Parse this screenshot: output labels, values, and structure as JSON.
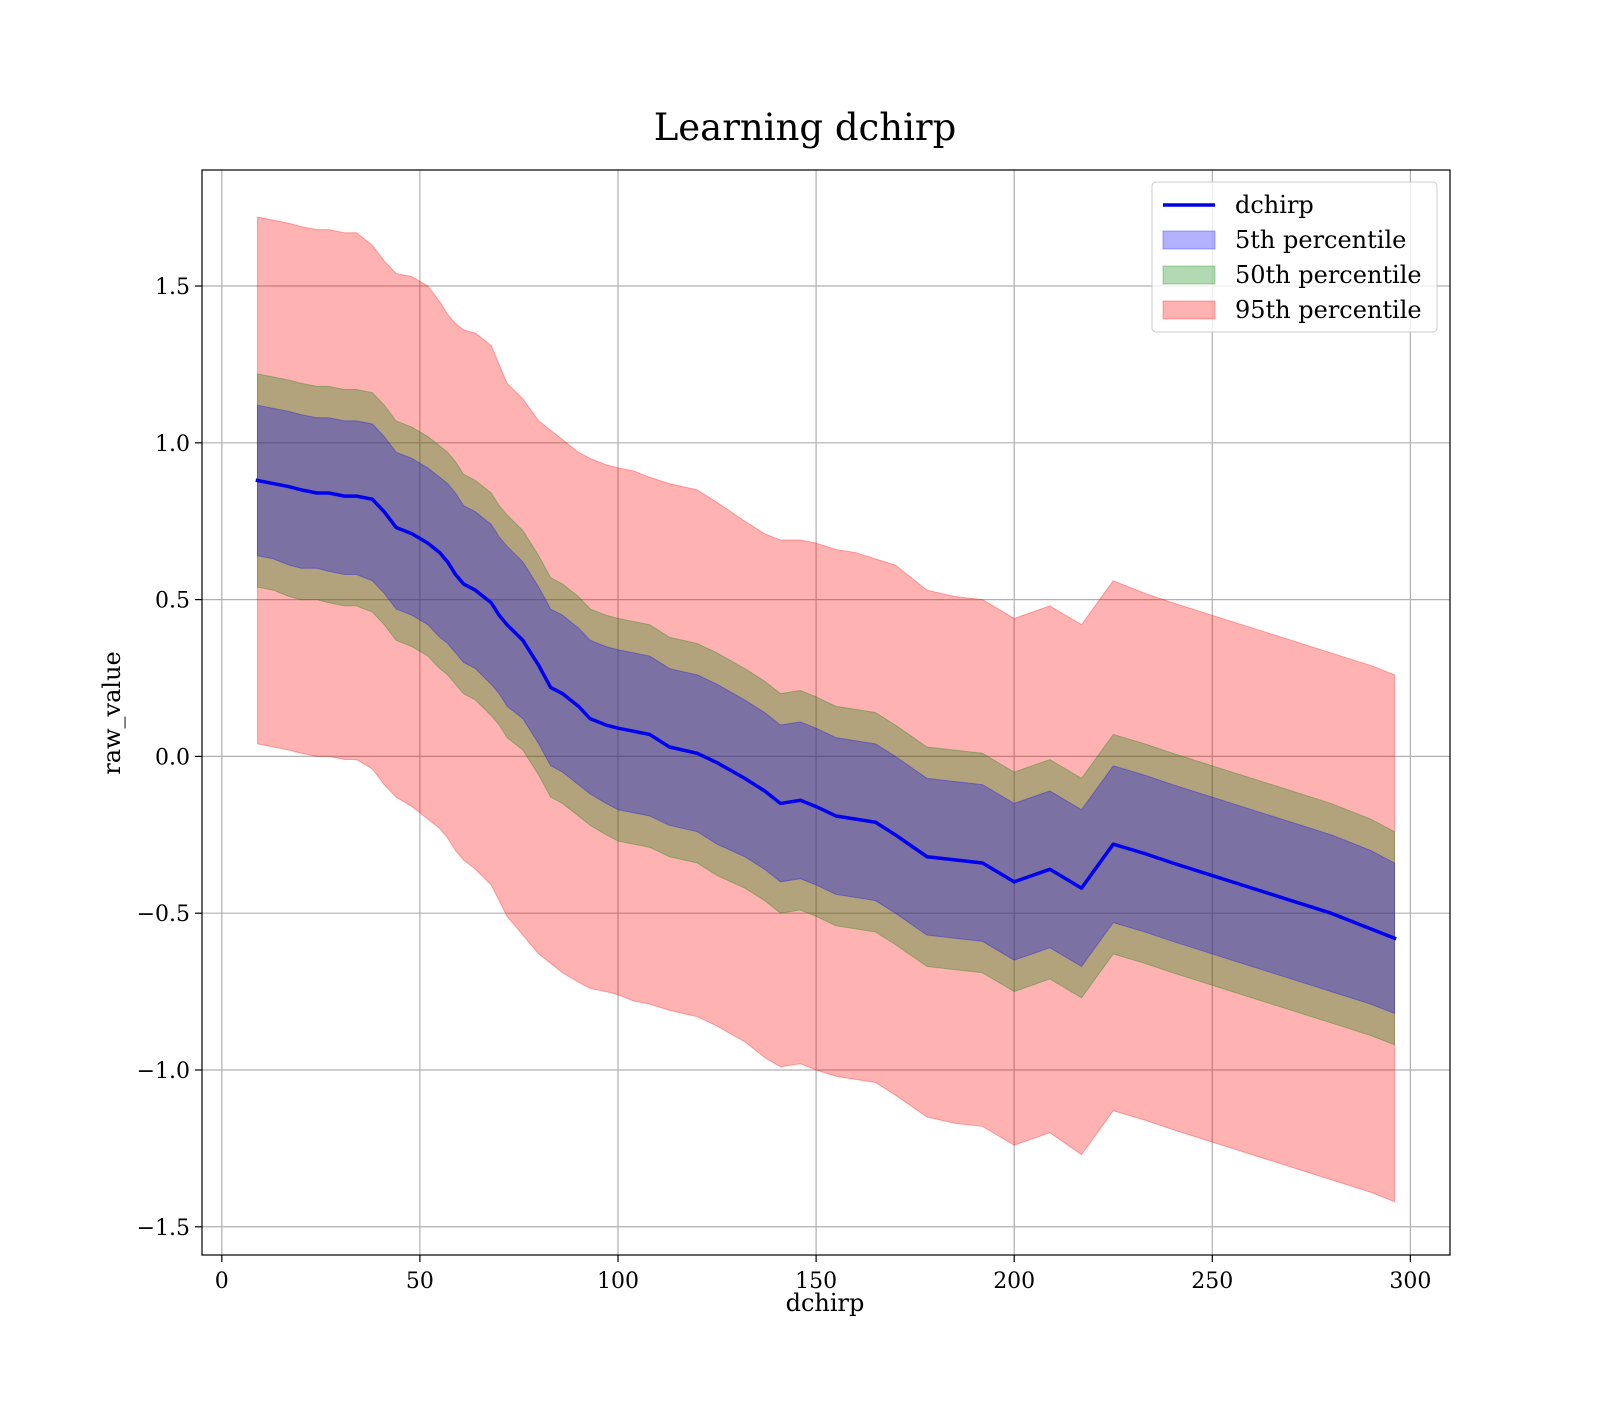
{
  "chart_data": {
    "type": "area",
    "title": "Learning dchirp",
    "xlabel": "dchirp",
    "ylabel": "raw_value",
    "xlim": [
      -5,
      310
    ],
    "ylim": [
      -1.59,
      1.87
    ],
    "xticks": [
      0,
      50,
      100,
      150,
      200,
      250,
      300
    ],
    "yticks": [
      -1.5,
      -1.0,
      -0.5,
      0.0,
      0.5,
      1.0,
      1.5
    ],
    "x_tick_labels": [
      "0",
      "50",
      "100",
      "150",
      "200",
      "250",
      "300"
    ],
    "y_tick_labels": [
      "−1.5",
      "−1.0",
      "−0.5",
      "0.0",
      "0.5",
      "1.0",
      "1.5"
    ],
    "grid": true,
    "legend_position": "top-right",
    "x": [
      9,
      13,
      17,
      20,
      24,
      27,
      31,
      34,
      38,
      41,
      44,
      48,
      52,
      55,
      57,
      59,
      61,
      64,
      68,
      70,
      72,
      76,
      80,
      83,
      86,
      90,
      93,
      97,
      100,
      104,
      108,
      113,
      120,
      125,
      132,
      137,
      141,
      146,
      150,
      155,
      160,
      165,
      170,
      178,
      185,
      192,
      200,
      209,
      217,
      225,
      233,
      240,
      250,
      260,
      270,
      280,
      290,
      296
    ],
    "series": [
      {
        "name": "dchirp",
        "kind": "line",
        "color": "#0000ee",
        "values": [
          0.88,
          0.87,
          0.86,
          0.85,
          0.84,
          0.84,
          0.83,
          0.83,
          0.82,
          0.78,
          0.73,
          0.71,
          0.68,
          0.65,
          0.62,
          0.58,
          0.55,
          0.53,
          0.49,
          0.45,
          0.42,
          0.37,
          0.29,
          0.22,
          0.2,
          0.16,
          0.12,
          0.1,
          0.09,
          0.08,
          0.07,
          0.03,
          0.01,
          -0.02,
          -0.07,
          -0.11,
          -0.15,
          -0.14,
          -0.16,
          -0.19,
          -0.2,
          -0.21,
          -0.25,
          -0.32,
          -0.33,
          -0.34,
          -0.4,
          -0.36,
          -0.42,
          -0.28,
          -0.31,
          -0.34,
          -0.38,
          -0.42,
          -0.46,
          -0.5,
          -0.55,
          -0.58
        ]
      },
      {
        "name": "5th percentile",
        "kind": "band",
        "color": "#0000ff",
        "lower": [
          0.64,
          0.63,
          0.61,
          0.6,
          0.6,
          0.59,
          0.58,
          0.58,
          0.56,
          0.52,
          0.47,
          0.45,
          0.42,
          0.38,
          0.36,
          0.33,
          0.3,
          0.28,
          0.23,
          0.2,
          0.16,
          0.12,
          0.04,
          -0.03,
          -0.05,
          -0.09,
          -0.12,
          -0.15,
          -0.17,
          -0.18,
          -0.19,
          -0.22,
          -0.24,
          -0.28,
          -0.32,
          -0.36,
          -0.4,
          -0.39,
          -0.41,
          -0.44,
          -0.45,
          -0.46,
          -0.5,
          -0.57,
          -0.58,
          -0.59,
          -0.65,
          -0.61,
          -0.67,
          -0.53,
          -0.56,
          -0.59,
          -0.63,
          -0.67,
          -0.71,
          -0.75,
          -0.79,
          -0.82
        ],
        "upper": [
          1.12,
          1.11,
          1.1,
          1.09,
          1.08,
          1.08,
          1.07,
          1.07,
          1.06,
          1.02,
          0.97,
          0.95,
          0.92,
          0.89,
          0.87,
          0.84,
          0.8,
          0.78,
          0.74,
          0.7,
          0.67,
          0.62,
          0.54,
          0.47,
          0.45,
          0.41,
          0.37,
          0.35,
          0.34,
          0.33,
          0.32,
          0.28,
          0.26,
          0.23,
          0.18,
          0.14,
          0.1,
          0.11,
          0.09,
          0.06,
          0.05,
          0.04,
          0.0,
          -0.07,
          -0.08,
          -0.09,
          -0.15,
          -0.11,
          -0.17,
          -0.03,
          -0.06,
          -0.09,
          -0.13,
          -0.17,
          -0.21,
          -0.25,
          -0.3,
          -0.34
        ]
      },
      {
        "name": "50th percentile",
        "kind": "band",
        "color": "#008000",
        "lower": [
          0.54,
          0.53,
          0.51,
          0.5,
          0.5,
          0.49,
          0.48,
          0.48,
          0.46,
          0.42,
          0.37,
          0.35,
          0.32,
          0.28,
          0.26,
          0.23,
          0.2,
          0.18,
          0.13,
          0.1,
          0.06,
          0.02,
          -0.06,
          -0.13,
          -0.15,
          -0.19,
          -0.22,
          -0.25,
          -0.27,
          -0.28,
          -0.29,
          -0.32,
          -0.34,
          -0.38,
          -0.42,
          -0.46,
          -0.5,
          -0.49,
          -0.51,
          -0.54,
          -0.55,
          -0.56,
          -0.6,
          -0.67,
          -0.68,
          -0.69,
          -0.75,
          -0.71,
          -0.77,
          -0.63,
          -0.66,
          -0.69,
          -0.73,
          -0.77,
          -0.81,
          -0.85,
          -0.89,
          -0.92
        ],
        "upper": [
          1.22,
          1.21,
          1.2,
          1.19,
          1.18,
          1.18,
          1.17,
          1.17,
          1.16,
          1.12,
          1.07,
          1.05,
          1.02,
          0.99,
          0.97,
          0.94,
          0.9,
          0.88,
          0.84,
          0.8,
          0.77,
          0.72,
          0.64,
          0.57,
          0.55,
          0.51,
          0.47,
          0.45,
          0.44,
          0.43,
          0.42,
          0.38,
          0.36,
          0.33,
          0.28,
          0.24,
          0.2,
          0.21,
          0.19,
          0.16,
          0.15,
          0.14,
          0.1,
          0.03,
          0.02,
          0.01,
          -0.05,
          -0.01,
          -0.07,
          0.07,
          0.04,
          0.01,
          -0.03,
          -0.07,
          -0.11,
          -0.15,
          -0.2,
          -0.24
        ]
      },
      {
        "name": "95th percentile",
        "kind": "band",
        "color": "#ff0000",
        "lower": [
          0.04,
          0.03,
          0.02,
          0.01,
          0.0,
          0.0,
          -0.01,
          -0.01,
          -0.04,
          -0.09,
          -0.13,
          -0.16,
          -0.2,
          -0.23,
          -0.26,
          -0.3,
          -0.33,
          -0.36,
          -0.41,
          -0.46,
          -0.51,
          -0.57,
          -0.63,
          -0.66,
          -0.69,
          -0.72,
          -0.74,
          -0.75,
          -0.76,
          -0.78,
          -0.79,
          -0.81,
          -0.83,
          -0.86,
          -0.91,
          -0.96,
          -0.99,
          -0.98,
          -1.0,
          -1.02,
          -1.03,
          -1.04,
          -1.08,
          -1.15,
          -1.17,
          -1.18,
          -1.24,
          -1.2,
          -1.27,
          -1.13,
          -1.16,
          -1.19,
          -1.23,
          -1.27,
          -1.31,
          -1.35,
          -1.39,
          -1.42
        ],
        "upper": [
          1.72,
          1.71,
          1.7,
          1.69,
          1.68,
          1.68,
          1.67,
          1.67,
          1.63,
          1.58,
          1.54,
          1.53,
          1.5,
          1.45,
          1.41,
          1.38,
          1.36,
          1.35,
          1.31,
          1.25,
          1.19,
          1.14,
          1.07,
          1.04,
          1.01,
          0.97,
          0.95,
          0.93,
          0.92,
          0.91,
          0.89,
          0.87,
          0.85,
          0.81,
          0.75,
          0.71,
          0.69,
          0.69,
          0.68,
          0.66,
          0.65,
          0.63,
          0.61,
          0.53,
          0.51,
          0.5,
          0.44,
          0.48,
          0.42,
          0.56,
          0.52,
          0.49,
          0.45,
          0.41,
          0.37,
          0.33,
          0.29,
          0.26
        ]
      }
    ]
  }
}
